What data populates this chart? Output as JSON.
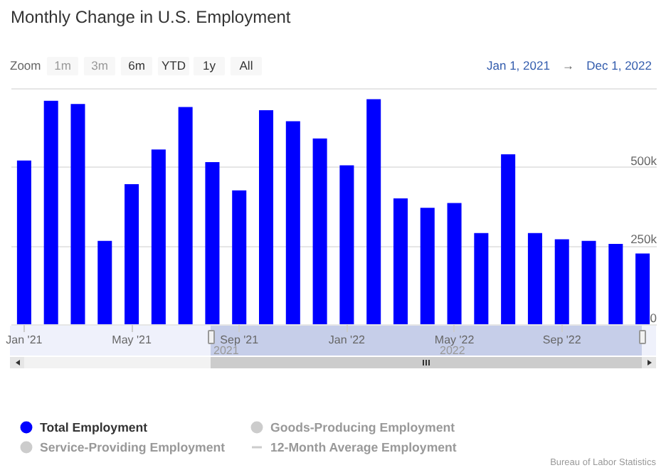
{
  "chart_data": {
    "type": "bar",
    "title": "Monthly Change in U.S. Employment",
    "categories": [
      "Jan '21",
      null,
      null,
      null,
      "May '21",
      null,
      null,
      null,
      "Sep '21",
      null,
      null,
      null,
      "Jan '22",
      null,
      null,
      null,
      "May '22",
      null,
      null,
      null,
      "Sep '22",
      null,
      null,
      null
    ],
    "series": [
      {
        "name": "Total Employment",
        "color": "#0000ff",
        "values": [
          520000,
          710000,
          700000,
          265000,
          445000,
          555000,
          690000,
          515000,
          425000,
          680000,
          645000,
          590000,
          505000,
          715000,
          400000,
          370000,
          385000,
          290000,
          540000,
          290000,
          270000,
          265000,
          255000,
          225000
        ]
      },
      {
        "name": "Goods-Producing Employment",
        "color": "#cccccc",
        "values": [
          null,
          null,
          null,
          null,
          null,
          null,
          null,
          null,
          null,
          null,
          null,
          null,
          null,
          null,
          null,
          null,
          null,
          null,
          null,
          null,
          null,
          null,
          null,
          null
        ]
      },
      {
        "name": "Service-Providing Employment",
        "color": "#cccccc",
        "values": [
          null,
          null,
          null,
          null,
          null,
          null,
          null,
          null,
          null,
          null,
          null,
          null,
          null,
          null,
          null,
          null,
          null,
          null,
          null,
          null,
          null,
          null,
          null,
          null
        ]
      },
      {
        "name": "12-Month Average Employment",
        "type": "line",
        "color": "#cccccc",
        "values": [
          null,
          null,
          null,
          null,
          null,
          null,
          null,
          null,
          null,
          null,
          null,
          null,
          null,
          null,
          null,
          null,
          null,
          null,
          null,
          null,
          null,
          null,
          null,
          null
        ]
      }
    ],
    "ylim": [
      0,
      750000
    ],
    "yticks": [
      0,
      {
        "value": 250000,
        "label": "250k"
      },
      {
        "value": 500000,
        "label": "500k"
      },
      {
        "value": 750000,
        "label": null
      }
    ],
    "grid": "y",
    "legend": "bottom left",
    "annotations": [
      "Zoom",
      "1m",
      "3m",
      "6m",
      "YTD",
      "1y",
      "All",
      "Jan 1, 2021",
      "→",
      "Dec 1, 2022",
      "2021",
      "2022",
      "Bureau of Labor Statistics"
    ]
  }
}
